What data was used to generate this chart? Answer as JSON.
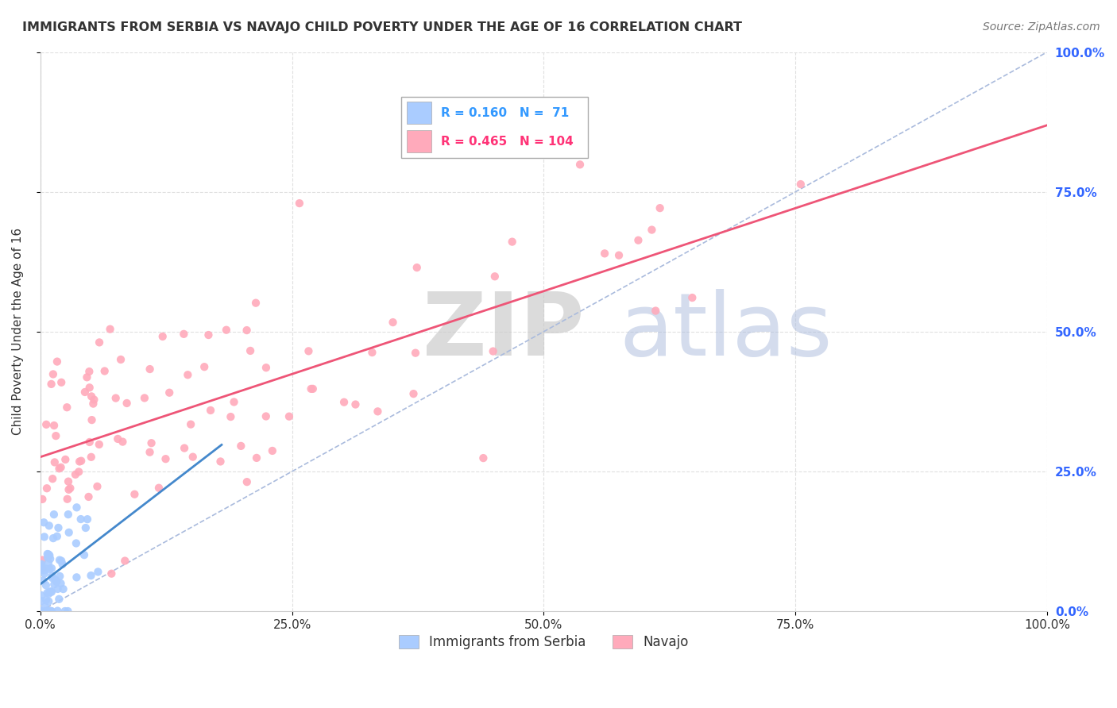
{
  "title": "IMMIGRANTS FROM SERBIA VS NAVAJO CHILD POVERTY UNDER THE AGE OF 16 CORRELATION CHART",
  "source": "Source: ZipAtlas.com",
  "ylabel": "Child Poverty Under the Age of 16",
  "xlim": [
    0,
    1
  ],
  "ylim": [
    0,
    1
  ],
  "xticks": [
    0.0,
    0.25,
    0.5,
    0.75,
    1.0
  ],
  "yticks": [
    0.0,
    0.25,
    0.5,
    0.75,
    1.0
  ],
  "xtick_labels": [
    "0.0%",
    "25.0%",
    "50.0%",
    "75.0%",
    "100.0%"
  ],
  "ytick_labels": [
    "0.0%",
    "25.0%",
    "50.0%",
    "75.0%",
    "100.0%"
  ],
  "series1_name": "Immigrants from Serbia",
  "series1_color": "#aaccff",
  "series1_line_color": "#4488cc",
  "series1_R": 0.16,
  "series1_N": 71,
  "series2_name": "Navajo",
  "series2_color": "#ffaabb",
  "series2_line_color": "#ee5577",
  "series2_R": 0.465,
  "series2_N": 104,
  "watermark_zip": "ZIP",
  "watermark_atlas": "atlas",
  "background_color": "#ffffff",
  "legend_R1_color": "#3399ff",
  "legend_R2_color": "#ff3377",
  "tick_color": "#3366ff",
  "grid_color": "#e0e0e0",
  "dot_size": 55
}
